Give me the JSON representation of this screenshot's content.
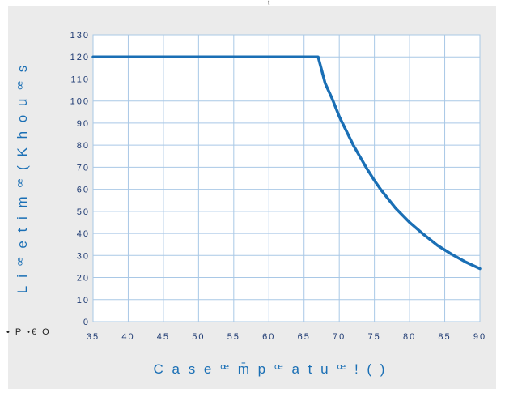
{
  "top_mark": "t",
  "corner_note": "• P •€ O",
  "colors": {
    "background_panel": "#ebebeb",
    "plot_area": "#ffffff",
    "grid": "#a9c8e6",
    "line": "#1a6fb5",
    "tick_text": "#1f3b73",
    "axis_title": "#1a6fb5"
  },
  "chart_data": {
    "type": "line",
    "title": "",
    "xlabel": "C a s e ꟹ m̄ p ꟹ a t u ꟹ ! ( )",
    "ylabel": "L i ꟹ e t i m ꟹ ( K h o u ꟹ s",
    "xlim": [
      35,
      90
    ],
    "ylim": [
      0,
      130
    ],
    "x_ticks": [
      "35",
      "40",
      "45",
      "50",
      "55",
      "60",
      "65",
      "70",
      "75",
      "80",
      "85",
      "90"
    ],
    "y_ticks": [
      "0",
      "10",
      "20",
      "30",
      "40",
      "50",
      "60",
      "70",
      "80",
      "90",
      "100",
      "110",
      "120",
      "130"
    ],
    "grid": true,
    "series": [
      {
        "color": "#1a6fb5",
        "x": [
          35,
          40,
          45,
          50,
          55,
          60,
          65,
          67,
          68,
          69,
          70,
          72,
          74,
          75,
          76,
          78,
          80,
          82,
          84,
          86,
          88,
          90
        ],
        "y": [
          120,
          120,
          120,
          120,
          120,
          120,
          120,
          120,
          108,
          101,
          93,
          80,
          69,
          64,
          59.5,
          51.5,
          45,
          39.5,
          34.5,
          30.5,
          27,
          24
        ]
      }
    ]
  }
}
